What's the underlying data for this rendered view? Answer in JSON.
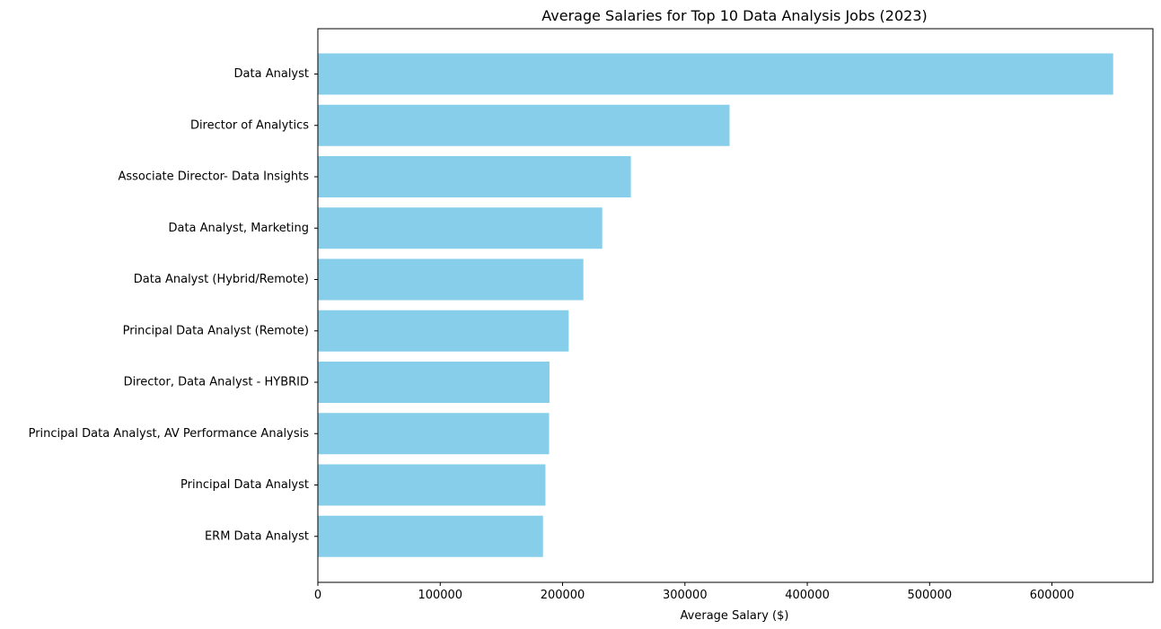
{
  "chart_data": {
    "type": "bar",
    "orientation": "horizontal",
    "title": "Average Salaries for Top 10 Data Analysis Jobs (2023)",
    "xlabel": "Average Salary ($)",
    "ylabel": "",
    "categories": [
      "Data Analyst",
      "Director of Analytics",
      "Associate Director- Data Insights",
      "Data Analyst, Marketing",
      "Data Analyst (Hybrid/Remote)",
      "Principal Data Analyst (Remote)",
      "Director, Data Analyst - HYBRID",
      "Principal Data Analyst, AV Performance Analysis",
      "Principal Data Analyst",
      "ERM Data Analyst"
    ],
    "values": [
      650000,
      336500,
      255830,
      232423,
      217000,
      205000,
      189309,
      189000,
      186000,
      184000
    ],
    "xlim": [
      0,
      682500
    ],
    "xticks": [
      0,
      100000,
      200000,
      300000,
      400000,
      500000,
      600000
    ],
    "xtick_labels": [
      "0",
      "100000",
      "200000",
      "300000",
      "400000",
      "500000",
      "600000"
    ],
    "bar_color": "#87CEEB",
    "grid": false,
    "legend": "none"
  }
}
